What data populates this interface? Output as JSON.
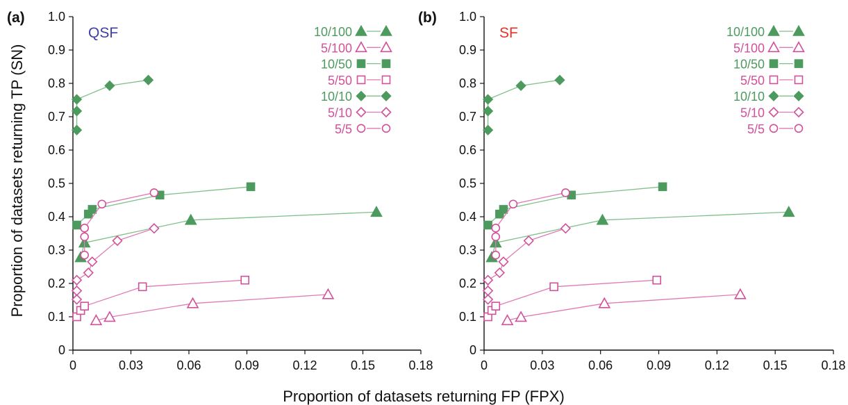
{
  "figure": {
    "xlabel": "Proportion of datasets returning FP (FPX)",
    "ylabel": "Proportion of datasets returning TP (SN)"
  },
  "chart_data": [
    {
      "type": "scatter",
      "panel_label": "(a)",
      "method_label": "QSF",
      "method_color": "#3f3fa8",
      "xlim": [
        0,
        0.18
      ],
      "ylim": [
        0,
        1.0
      ],
      "x_ticks": [
        "0",
        "0.03",
        "0.06",
        "0.09",
        "0.12",
        "0.15",
        "0.18"
      ],
      "y_ticks": [
        "0",
        "0.1",
        "0.2",
        "0.3",
        "0.4",
        "0.5",
        "0.6",
        "0.7",
        "0.8",
        "0.9",
        "1.0"
      ],
      "grid": false,
      "legend_position": "top-right",
      "series": [
        {
          "name": "10/100",
          "marker": "triangle",
          "filled": true,
          "color": "#4d9a5e",
          "line_color": "#7fbf8a",
          "points": [
            [
              0.004,
              0.278
            ],
            [
              0.006,
              0.322
            ],
            [
              0.061,
              0.39
            ],
            [
              0.157,
              0.414
            ]
          ]
        },
        {
          "name": "5/100",
          "marker": "triangle",
          "filled": false,
          "color": "#d2509a",
          "line_color": "#e07ab5",
          "points": [
            [
              0.012,
              0.089
            ],
            [
              0.019,
              0.099
            ],
            [
              0.062,
              0.14
            ],
            [
              0.132,
              0.167
            ]
          ]
        },
        {
          "name": "10/50",
          "marker": "square",
          "filled": true,
          "color": "#4d9a5e",
          "line_color": "#7fbf8a",
          "points": [
            [
              0.002,
              0.375
            ],
            [
              0.008,
              0.408
            ],
            [
              0.01,
              0.422
            ],
            [
              0.045,
              0.465
            ],
            [
              0.092,
              0.49
            ]
          ]
        },
        {
          "name": "5/50",
          "marker": "square",
          "filled": false,
          "color": "#d2509a",
          "line_color": "#e07ab5",
          "points": [
            [
              0.002,
              0.1
            ],
            [
              0.004,
              0.119
            ],
            [
              0.006,
              0.132
            ],
            [
              0.036,
              0.19
            ],
            [
              0.089,
              0.21
            ]
          ]
        },
        {
          "name": "10/10",
          "marker": "diamond",
          "filled": true,
          "color": "#4d9a5e",
          "line_color": "#7fbf8a",
          "points": [
            [
              0.002,
              0.66
            ],
            [
              0.002,
              0.717
            ],
            [
              0.002,
              0.752
            ],
            [
              0.019,
              0.793
            ],
            [
              0.039,
              0.81
            ]
          ]
        },
        {
          "name": "5/10",
          "marker": "diamond",
          "filled": false,
          "color": "#d2509a",
          "line_color": "#e07ab5",
          "points": [
            [
              0.002,
              0.152
            ],
            [
              0.002,
              0.178
            ],
            [
              0.002,
              0.21
            ],
            [
              0.008,
              0.232
            ],
            [
              0.01,
              0.265
            ],
            [
              0.023,
              0.328
            ],
            [
              0.042,
              0.365
            ]
          ]
        },
        {
          "name": "5/5",
          "marker": "circle",
          "filled": false,
          "color": "#d2509a",
          "line_color": "#e07ab5",
          "points": [
            [
              0.006,
              0.285
            ],
            [
              0.006,
              0.34
            ],
            [
              0.006,
              0.366
            ],
            [
              0.015,
              0.438
            ],
            [
              0.042,
              0.472
            ]
          ]
        }
      ]
    },
    {
      "type": "scatter",
      "panel_label": "(b)",
      "method_label": "SF",
      "method_color": "#e8312a",
      "xlim": [
        0,
        0.18
      ],
      "ylim": [
        0,
        1.0
      ],
      "x_ticks": [
        "0",
        "0.03",
        "0.06",
        "0.09",
        "0.12",
        "0.15",
        "0.18"
      ],
      "y_ticks": [
        "0",
        "0.1",
        "0.2",
        "0.3",
        "0.4",
        "0.5",
        "0.6",
        "0.7",
        "0.8",
        "0.9",
        "1.0"
      ],
      "grid": false,
      "legend_position": "top-right",
      "series": [
        {
          "name": "10/100",
          "marker": "triangle",
          "filled": true,
          "color": "#4d9a5e",
          "line_color": "#7fbf8a",
          "points": [
            [
              0.004,
              0.278
            ],
            [
              0.006,
              0.322
            ],
            [
              0.061,
              0.39
            ],
            [
              0.157,
              0.414
            ]
          ]
        },
        {
          "name": "5/100",
          "marker": "triangle",
          "filled": false,
          "color": "#d2509a",
          "line_color": "#e07ab5",
          "points": [
            [
              0.012,
              0.089
            ],
            [
              0.019,
              0.099
            ],
            [
              0.062,
              0.14
            ],
            [
              0.132,
              0.167
            ]
          ]
        },
        {
          "name": "10/50",
          "marker": "square",
          "filled": true,
          "color": "#4d9a5e",
          "line_color": "#7fbf8a",
          "points": [
            [
              0.002,
              0.375
            ],
            [
              0.008,
              0.408
            ],
            [
              0.01,
              0.422
            ],
            [
              0.045,
              0.465
            ],
            [
              0.092,
              0.49
            ]
          ]
        },
        {
          "name": "5/50",
          "marker": "square",
          "filled": false,
          "color": "#d2509a",
          "line_color": "#e07ab5",
          "points": [
            [
              0.002,
              0.1
            ],
            [
              0.004,
              0.119
            ],
            [
              0.006,
              0.132
            ],
            [
              0.036,
              0.19
            ],
            [
              0.089,
              0.21
            ]
          ]
        },
        {
          "name": "10/10",
          "marker": "diamond",
          "filled": true,
          "color": "#4d9a5e",
          "line_color": "#7fbf8a",
          "points": [
            [
              0.002,
              0.66
            ],
            [
              0.002,
              0.717
            ],
            [
              0.002,
              0.752
            ],
            [
              0.019,
              0.793
            ],
            [
              0.039,
              0.81
            ]
          ]
        },
        {
          "name": "5/10",
          "marker": "diamond",
          "filled": false,
          "color": "#d2509a",
          "line_color": "#e07ab5",
          "points": [
            [
              0.002,
              0.152
            ],
            [
              0.002,
              0.178
            ],
            [
              0.002,
              0.21
            ],
            [
              0.008,
              0.232
            ],
            [
              0.01,
              0.265
            ],
            [
              0.023,
              0.328
            ],
            [
              0.042,
              0.365
            ]
          ]
        },
        {
          "name": "5/5",
          "marker": "circle",
          "filled": false,
          "color": "#d2509a",
          "line_color": "#e07ab5",
          "points": [
            [
              0.006,
              0.285
            ],
            [
              0.006,
              0.34
            ],
            [
              0.006,
              0.366
            ],
            [
              0.015,
              0.438
            ],
            [
              0.042,
              0.472
            ]
          ]
        }
      ]
    }
  ]
}
